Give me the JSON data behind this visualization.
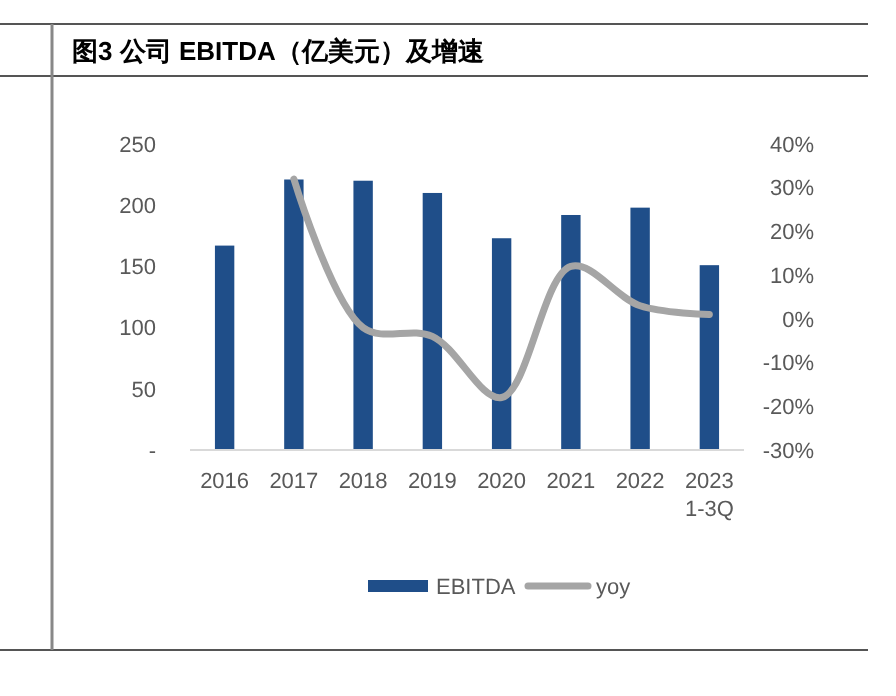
{
  "chart_data": {
    "type": "bar",
    "title": "图3  公司 EBITDA（亿美元）及增速",
    "categories": [
      "2016",
      "2017",
      "2018",
      "2019",
      "2020",
      "2021",
      "2022",
      "2023\n1-3Q"
    ],
    "series": [
      {
        "name": "EBITDA",
        "color": "#1f4e89",
        "values": [
          167,
          221,
          220,
          210,
          173,
          192,
          198,
          151
        ]
      },
      {
        "name": "yoy",
        "type": "line",
        "axis": "y2",
        "color": "#a5a5a5",
        "values": [
          null,
          32,
          -2,
          -4,
          -18,
          12,
          3,
          1
        ]
      }
    ],
    "ylim": [
      0,
      250
    ],
    "yticks": [
      {
        "value": 0,
        "label": "-"
      },
      50,
      100,
      150,
      200,
      250
    ],
    "y2lim": [
      -30,
      40
    ],
    "y2ticks": [
      {
        "value": -30,
        "label": "-30%"
      },
      {
        "value": -20,
        "label": "-20%"
      },
      {
        "value": -10,
        "label": "-10%"
      },
      {
        "value": 0,
        "label": "0%"
      },
      {
        "value": 10,
        "label": "10%"
      },
      {
        "value": 20,
        "label": "20%"
      },
      {
        "value": 30,
        "label": "30%"
      },
      {
        "value": 40,
        "label": "40%"
      }
    ],
    "legend": "bottom",
    "line_style": "solid",
    "marker": "none"
  }
}
